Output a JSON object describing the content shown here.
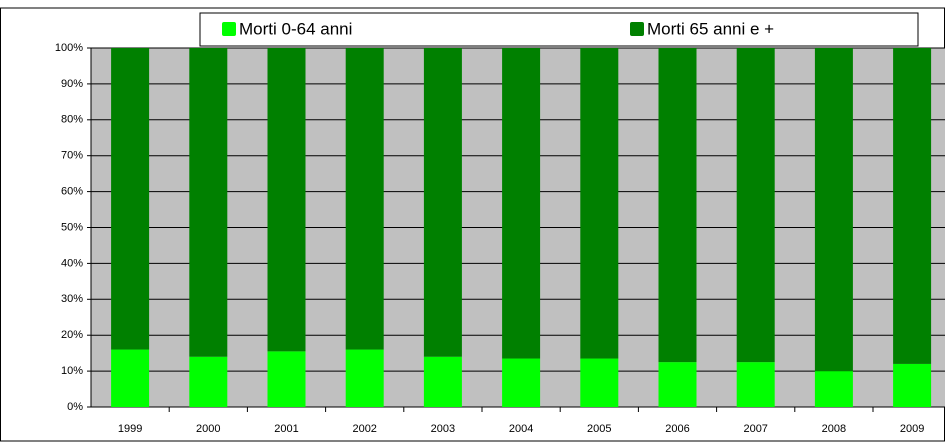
{
  "chart_data": {
    "type": "stacked_bar_percent",
    "categories": [
      "1999",
      "2000",
      "2001",
      "2002",
      "2003",
      "2004",
      "2005",
      "2006",
      "2007",
      "2008",
      "2009"
    ],
    "series": [
      {
        "name": "Morti 0-64 anni",
        "color": "#00ff00",
        "values": [
          16,
          14,
          15.5,
          16,
          14,
          13.5,
          13.5,
          12.5,
          12.5,
          10,
          12
        ]
      },
      {
        "name": "Morti 65 anni e +",
        "color": "#008000",
        "values": [
          84,
          86,
          84.5,
          84,
          86,
          86.5,
          86.5,
          87.5,
          87.5,
          90,
          88
        ]
      }
    ],
    "ylim": [
      0,
      100
    ],
    "yticks": [
      {
        "value": 0,
        "label": "0%"
      },
      {
        "value": 10,
        "label": "10%"
      },
      {
        "value": 20,
        "label": "20%"
      },
      {
        "value": 30,
        "label": "30%"
      },
      {
        "value": 40,
        "label": "40%"
      },
      {
        "value": 50,
        "label": "50%"
      },
      {
        "value": 60,
        "label": "60%"
      },
      {
        "value": 70,
        "label": "70%"
      },
      {
        "value": 80,
        "label": "80%"
      },
      {
        "value": 90,
        "label": "90%"
      },
      {
        "value": 100,
        "label": "100%"
      }
    ],
    "grid": true
  }
}
